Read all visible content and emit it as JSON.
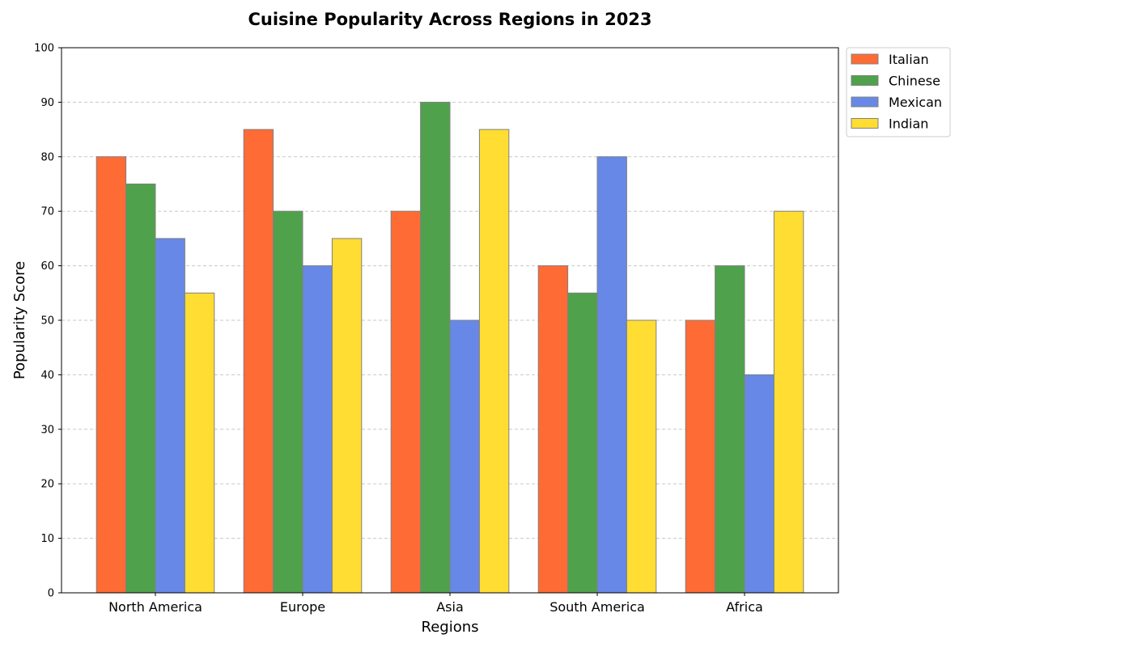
{
  "chart_data": {
    "type": "bar",
    "title": "Cuisine Popularity Across Regions in 2023",
    "xlabel": "Regions",
    "ylabel": "Popularity Score",
    "ylim": [
      0,
      100
    ],
    "yticks": [
      "0",
      "10",
      "20",
      "30",
      "40",
      "50",
      "60",
      "70",
      "80",
      "90",
      "100"
    ],
    "categories": [
      "North America",
      "Europe",
      "Asia",
      "South America",
      "Africa"
    ],
    "series": [
      {
        "name": "Italian",
        "color": "#ff6b35",
        "values": [
          80,
          85,
          70,
          60,
          50
        ]
      },
      {
        "name": "Chinese",
        "color": "#4fa24b",
        "values": [
          75,
          70,
          90,
          55,
          60
        ]
      },
      {
        "name": "Mexican",
        "color": "#6788e6",
        "values": [
          65,
          60,
          50,
          80,
          40
        ]
      },
      {
        "name": "Indian",
        "color": "#ffdd33",
        "values": [
          55,
          65,
          85,
          50,
          70
        ]
      }
    ],
    "grid": "horizontal dashed",
    "legend_position": "outside top-right"
  }
}
